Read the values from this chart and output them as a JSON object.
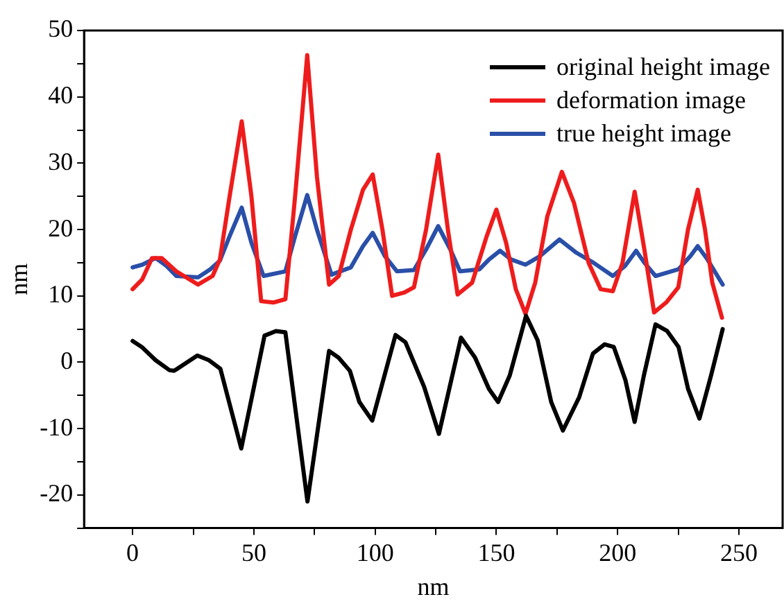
{
  "chart_data": {
    "type": "line",
    "xlabel": "nm",
    "ylabel": "nm",
    "xlim": [
      -20,
      268
    ],
    "ylim": [
      -25,
      50
    ],
    "xticks": [
      0,
      {
        "value": 25,
        "label": null
      },
      50,
      {
        "value": 75,
        "label": null
      },
      100,
      {
        "value": 125,
        "label": null
      },
      150,
      {
        "value": 175,
        "label": null
      },
      200,
      {
        "value": 225,
        "label": null
      },
      250
    ],
    "yticks": [
      {
        "value": -25,
        "label": null
      },
      -20,
      {
        "value": -15,
        "label": null
      },
      -10,
      {
        "value": -5,
        "label": null
      },
      0,
      {
        "value": 5,
        "label": null
      },
      10,
      {
        "value": 15,
        "label": null
      },
      20,
      {
        "value": 25,
        "label": null
      },
      30,
      {
        "value": 35,
        "label": null
      },
      40,
      {
        "value": 45,
        "label": null
      },
      50
    ],
    "grid": false,
    "legend": "top right",
    "marker": "none",
    "line_style": "solid",
    "series": [
      {
        "name": "original height image",
        "color": "#000000",
        "x": [
          0,
          3.8,
          9.5,
          15.2,
          17.1,
          26.7,
          31.5,
          36.2,
          44.8,
          54.4,
          59.1,
          63,
          72.1,
          81,
          84.9,
          89.6,
          93.5,
          98.8,
          108.4,
          112.5,
          120.2,
          126.3,
          135.4,
          141.2,
          146.9,
          150.7,
          155.5,
          162.2,
          167,
          172.6,
          177.4,
          184.1,
          189.8,
          194.6,
          198.4,
          203.2,
          207,
          210.8,
          215.6,
          220.4,
          225.1,
          229,
          233.7,
          238.5,
          243.3
        ],
        "values": [
          3.2,
          2.3,
          0.3,
          -1.2,
          -1.3,
          1,
          0.3,
          -1,
          -13,
          4,
          4.7,
          4.5,
          -21,
          1.7,
          0.7,
          -1.3,
          -6,
          -8.8,
          4.1,
          3,
          -3.7,
          -10.8,
          3.7,
          0.7,
          -4,
          -6,
          -2,
          7,
          3.3,
          -6,
          -10.3,
          -5.3,
          1.3,
          2.7,
          2.3,
          -2.7,
          -9,
          -2,
          5.7,
          4.7,
          2.3,
          -4,
          -8.5,
          -2,
          5
        ]
      },
      {
        "name": "deformation image",
        "color": "#ee1c1c",
        "x": [
          0,
          4,
          8,
          12,
          18,
          27,
          33,
          36,
          40,
          45,
          49,
          53,
          58,
          63,
          67,
          72,
          76,
          81,
          85,
          90,
          95,
          99,
          103,
          107,
          112,
          116,
          121,
          126,
          130,
          134,
          140,
          146,
          150,
          154,
          158,
          162,
          166,
          171,
          177,
          182,
          188,
          193,
          198,
          202,
          207,
          211,
          215,
          220,
          225,
          229,
          233,
          236,
          239,
          243
        ],
        "values": [
          11,
          12.5,
          15.7,
          15.7,
          13.7,
          11.7,
          13,
          15.5,
          25,
          36.3,
          25,
          9.2,
          9,
          9.5,
          25,
          46.3,
          28,
          11.7,
          13,
          20,
          26,
          28.3,
          20,
          10,
          10.5,
          11.3,
          20,
          31.3,
          20,
          10.2,
          12,
          19,
          23,
          18,
          11,
          7.3,
          12,
          22,
          28.7,
          24,
          15,
          11,
          10.7,
          15,
          25.7,
          17,
          7.5,
          9,
          11.3,
          20,
          26,
          20,
          12,
          6.7
        ]
      },
      {
        "name": "true height image",
        "color": "#2a4fa8",
        "x": [
          0,
          4,
          9.5,
          14,
          18,
          27,
          32,
          36,
          40,
          45,
          49,
          54,
          63,
          67,
          72,
          76,
          82,
          90,
          95,
          99,
          104,
          109,
          116,
          121,
          126,
          131,
          135,
          143,
          147,
          151.5,
          156,
          162,
          168,
          176,
          183,
          190,
          198,
          203,
          207.6,
          211,
          215.6,
          225,
          230,
          233,
          237,
          243.3
        ],
        "values": [
          14.3,
          14.7,
          15.7,
          14.5,
          13,
          12.8,
          14,
          15.3,
          19,
          23.3,
          18,
          13,
          13.7,
          19,
          25.2,
          20,
          13.2,
          14.3,
          17.5,
          19.5,
          16,
          13.7,
          13.9,
          17,
          20.5,
          17,
          13.7,
          14,
          15.5,
          16.8,
          15.5,
          14.7,
          16,
          18.5,
          16.5,
          15,
          13,
          14.5,
          16.8,
          15,
          13,
          14,
          16,
          17.5,
          15.5,
          11.7
        ]
      }
    ]
  }
}
